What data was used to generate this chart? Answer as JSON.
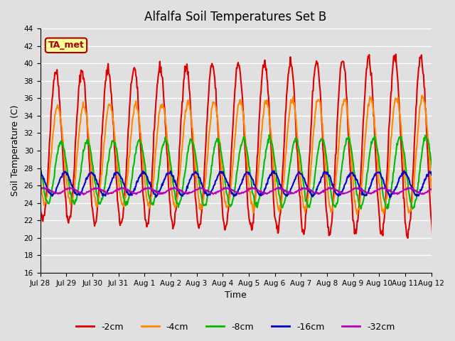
{
  "title": "Alfalfa Soil Temperatures Set B",
  "xlabel": "Time",
  "ylabel": "Soil Temperature (C)",
  "ylim": [
    16,
    44
  ],
  "yticks": [
    16,
    18,
    20,
    22,
    24,
    26,
    28,
    30,
    32,
    34,
    36,
    38,
    40,
    42,
    44
  ],
  "xtick_labels": [
    "Jul 28",
    "Jul 29",
    "Jul 30",
    "Jul 31",
    "Aug 1",
    "Aug 2",
    "Aug 3",
    "Aug 4",
    "Aug 5",
    "Aug 6",
    "Aug 7",
    "Aug 8",
    "Aug 9",
    "Aug 10",
    "Aug 11",
    "Aug 12"
  ],
  "line_colors": [
    "#dd0000",
    "#ff8800",
    "#00bb00",
    "#0000cc",
    "#bb00bb"
  ],
  "line_labels": [
    "-2cm",
    "-4cm",
    "-8cm",
    "-16cm",
    "-32cm"
  ],
  "bg_color": "#e0e0e0",
  "plot_bg_color": "#e0e0e0",
  "grid_color": "#ffffff",
  "annotation_text": "TA_met",
  "annotation_bg": "#ffff99",
  "annotation_border": "#aa0000",
  "n_days": 16,
  "pts_per_day": 48,
  "mean_2": 30.5,
  "mean_4": 29.5,
  "mean_8": 27.5,
  "mean_16": 26.2,
  "mean_32": 25.4,
  "amp_2_base": 8.5,
  "amp_2_trend": 0.12,
  "amp_4_base": 5.5,
  "amp_4_trend": 0.08,
  "amp_8_base": 3.5,
  "amp_8_trend": 0.04,
  "amp_16": 1.3,
  "amp_32": 0.3,
  "phase_2": 0.35,
  "phase_4": 0.42,
  "phase_8": 0.55,
  "phase_16": 0.7,
  "phase_32": 0.9
}
